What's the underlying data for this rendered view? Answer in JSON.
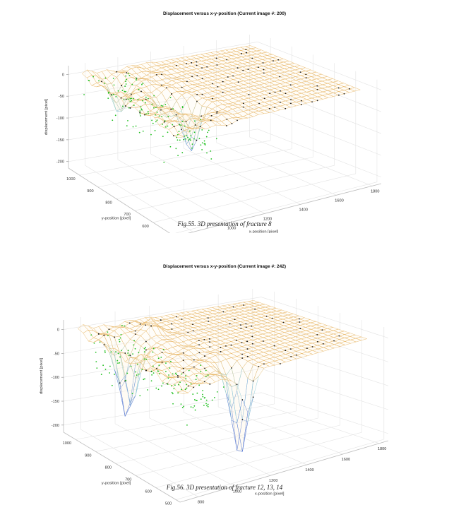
{
  "chart_data": [
    {
      "type": "surface",
      "title": "Displacement versus x-y-position (Current image #: 200)",
      "caption": "Fig.55. 3D presentation of fracture 8",
      "xlabel": "x-position [pixel]",
      "ylabel": "y-position [pixel]",
      "zlabel": "displacement [pixel]",
      "xticks": [
        "800",
        "1000",
        "1200",
        "1400",
        "1600",
        "1800"
      ],
      "yticks": [
        "1000",
        "900",
        "800",
        "700",
        "600",
        "500"
      ],
      "zticks": [
        "0",
        "-50",
        "-100",
        "-150",
        "-200"
      ],
      "xlim": [
        700,
        1850
      ],
      "ylim": [
        480,
        1060
      ],
      "zlim": [
        -215,
        20
      ],
      "grid": true,
      "surface_colors": [
        "#e8b86a",
        "#8fd2d8",
        "#5d7fd6"
      ],
      "marker_colors": [
        "#1a1a1a",
        "#20c020"
      ],
      "features": [
        {
          "x": 860,
          "y": 930,
          "z": -70
        },
        {
          "x": 1020,
          "y": 700,
          "z": -110
        },
        {
          "x": 960,
          "y": 780,
          "z": -45
        }
      ]
    },
    {
      "type": "surface",
      "title": "Displacement versus x-y-position (Current image #: 242)",
      "caption": "Fig.56. 3D presentation of fracture 12, 13, 14",
      "xlabel": "x-position [pixel]",
      "ylabel": "y-position [pixel]",
      "zlabel": "displacement [pixel]",
      "xticks": [
        "800",
        "1000",
        "1200",
        "1400",
        "1600",
        "1800"
      ],
      "yticks": [
        "1000",
        "900",
        "800",
        "700",
        "600",
        "500"
      ],
      "zticks": [
        "0",
        "-50",
        "-100",
        "-150",
        "-200"
      ],
      "xlim": [
        700,
        1850
      ],
      "ylim": [
        480,
        1060
      ],
      "zlim": [
        -215,
        20
      ],
      "grid": true,
      "surface_colors": [
        "#e8b86a",
        "#8fd2d8",
        "#5d7fd6"
      ],
      "marker_colors": [
        "#1a1a1a",
        "#20c020"
      ],
      "features": [
        {
          "x": 860,
          "y": 880,
          "z": -160
        },
        {
          "x": 1120,
          "y": 560,
          "z": -185
        },
        {
          "x": 1050,
          "y": 930,
          "z": 30
        }
      ]
    }
  ]
}
